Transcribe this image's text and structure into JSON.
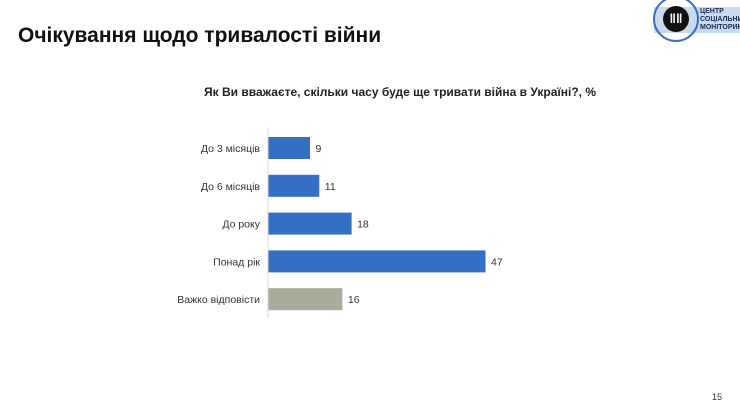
{
  "title": "Очікування щодо тривалості війни",
  "logo": {
    "text": "ЦЕНТР\nСОЦІАЛЬНИЙ\nМОНІТОРИНГ",
    "colors": {
      "ring": "#3a6fc4",
      "band": "#c9d9ee"
    }
  },
  "page_number": "15",
  "chart_data": {
    "type": "bar",
    "orientation": "horizontal",
    "title": "Як Ви вважаєте, скільки часу буде ще тривати війна в Україні?, %",
    "categories": [
      "До 3 місяців",
      "До 6 місяців",
      "До року",
      "Понад рік",
      "Важко відповісти"
    ],
    "values": [
      9,
      11,
      18,
      47,
      16
    ],
    "colors": [
      "#3370c4",
      "#3370c4",
      "#3370c4",
      "#3370c4",
      "#abab9b"
    ],
    "xlim": [
      0,
      50
    ],
    "grid": false,
    "data_labels": true
  }
}
